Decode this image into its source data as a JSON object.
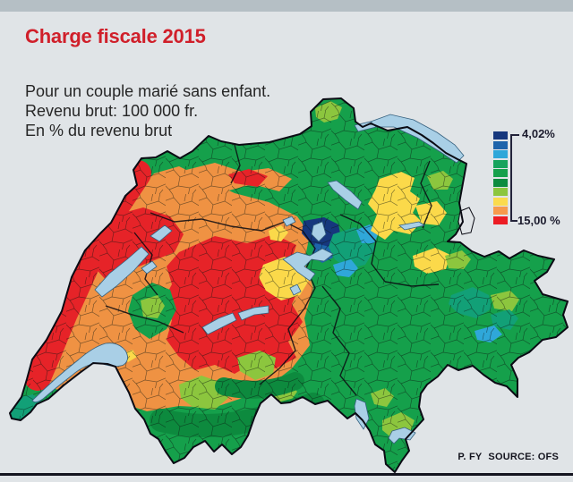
{
  "header": {
    "title": "Charge fiscale 2015",
    "title_color": "#d01f2a"
  },
  "subtitle": {
    "line1": "Pour un couple marié sans enfant.",
    "line2": "Revenu brut: 100 000 fr.",
    "line3": "En % du revenu brut"
  },
  "legend": {
    "top_label": "4,02%",
    "bottom_label": "15,00 %",
    "colors": [
      "#16377d",
      "#1e64ab",
      "#2fa7d9",
      "#17a35d",
      "#15a04b",
      "#0c8b3f",
      "#8cc63e",
      "#fbdb4d",
      "#f79a4d",
      "#ec1c24"
    ]
  },
  "source": {
    "credit": "P. FY",
    "label": "SOURCE: OFS"
  },
  "map": {
    "unit": "% du revenu brut",
    "scale_min": "4,02%",
    "scale_max": "15,00%",
    "palette": {
      "red": "#e62328",
      "orange": "#ef9243",
      "yellow": "#fbd94a",
      "light_green": "#8cc63e",
      "green": "#15a04b",
      "dark_green": "#0d8a3e",
      "teal": "#12a077",
      "cyan": "#2fa7d9",
      "blue": "#1e64ab",
      "navy": "#16377d",
      "lake": "#a9cfe6",
      "background": "#e0e4e7"
    },
    "top_strip_color": "#b5bfc5",
    "bottom_rule_color": "#14141f",
    "border_color": "#0b0b14"
  }
}
